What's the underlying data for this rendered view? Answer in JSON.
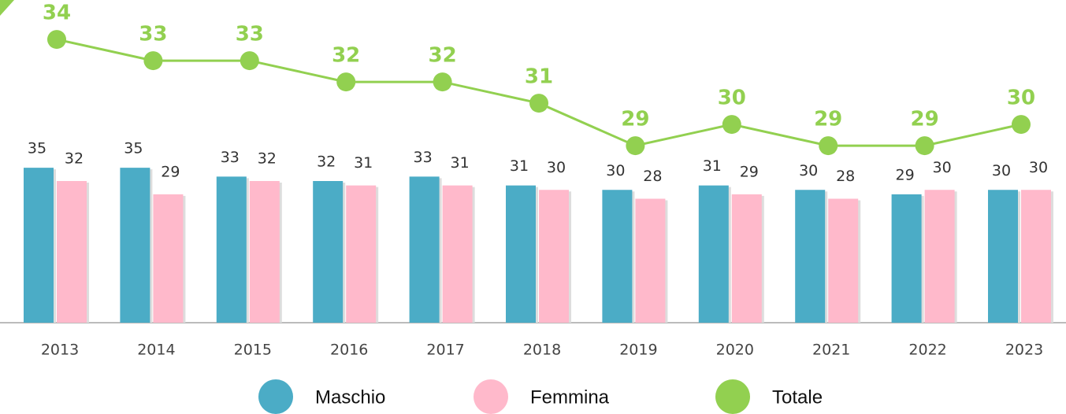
{
  "chart_data": {
    "type": "bar-line",
    "categories": [
      "2013",
      "2014",
      "2015",
      "2016",
      "2017",
      "2018",
      "2019",
      "2020",
      "2021",
      "2022",
      "2023"
    ],
    "series": [
      {
        "name": "Maschio",
        "color": "#4bacc6",
        "type": "bar",
        "values": [
          35,
          35,
          33,
          32,
          33,
          31,
          30,
          31,
          30,
          29,
          30
        ]
      },
      {
        "name": "Femmina",
        "color": "#ffb9cb",
        "type": "bar",
        "values": [
          32,
          29,
          32,
          31,
          31,
          30,
          28,
          29,
          28,
          30,
          30
        ]
      },
      {
        "name": "Totale",
        "color": "#92d050",
        "type": "line",
        "axis": "y2",
        "values": [
          34,
          33,
          33,
          32,
          32,
          31,
          29,
          30,
          29,
          29,
          30
        ]
      }
    ],
    "ylim": [
      0,
      72
    ],
    "y2lim": [
      20.67,
      35.67
    ],
    "legend": "bottom"
  }
}
